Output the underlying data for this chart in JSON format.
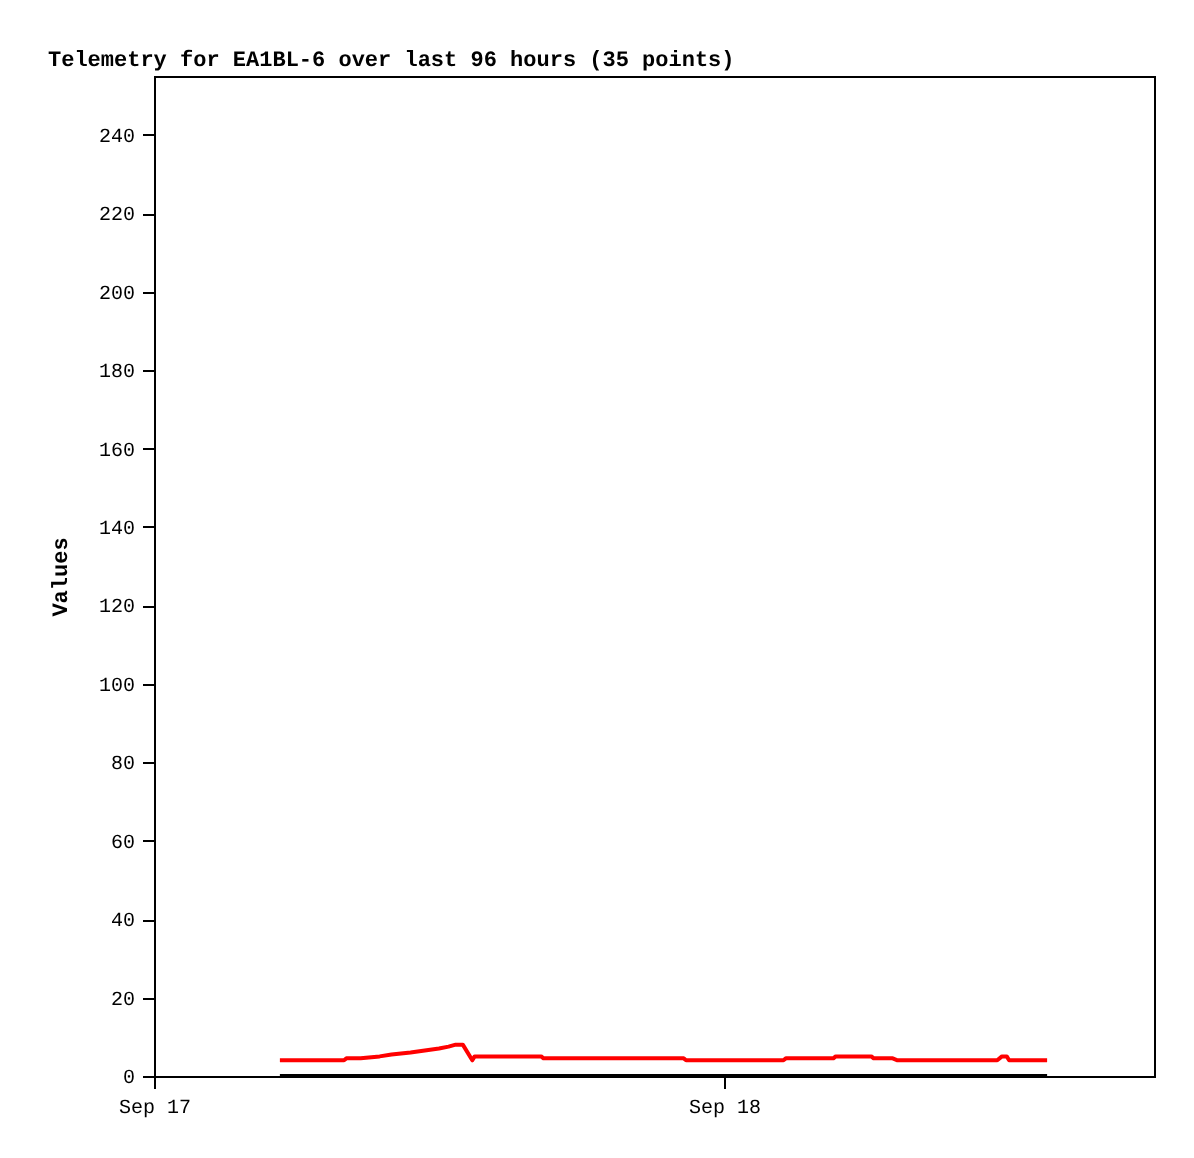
{
  "chart_data": {
    "type": "line",
    "title": "Telemetry for EA1BL-6 over last 96 hours (35 points)",
    "ylabel": "Values",
    "x": [
      "--09-17T05:18",
      "--09-17T08:00",
      "--09-17T08:06",
      "--09-17T08:42",
      "--09-17T09:30",
      "--09-17T10:00",
      "--09-17T10:48",
      "--09-17T11:24",
      "--09-17T12:00",
      "--09-17T12:24",
      "--09-17T12:42",
      "--09-17T13:00",
      "--09-17T13:24",
      "--09-17T13:30",
      "--09-17T16:18",
      "--09-17T16:24",
      "--09-17T22:18",
      "--09-17T22:24",
      "--09-18T02:30",
      "--09-18T02:36",
      "--09-18T04:36",
      "--09-18T04:42",
      "--09-18T06:12",
      "--09-18T06:18",
      "--09-18T07:06",
      "--09-18T07:18",
      "--09-18T11:30",
      "--09-18T11:42",
      "--09-18T11:54",
      "--09-18T12:00",
      "--09-18T13:36"
    ],
    "series": [
      {
        "color": "#ff0000",
        "values": [
          4,
          4,
          4.5,
          4.5,
          5,
          5.5,
          6,
          6.5,
          7,
          7.5,
          8,
          8,
          4,
          5,
          5,
          4.5,
          4.5,
          4,
          4,
          4.5,
          4.5,
          5,
          5,
          4.5,
          4.5,
          4,
          4,
          5,
          5,
          4,
          4
        ]
      },
      {
        "color": "#000000",
        "x": [
          "--09-17T05:18",
          "--09-18T13:36"
        ],
        "values": [
          0,
          0
        ]
      }
    ],
    "xlim": [
      "--09-17",
      "--09-18T18:06"
    ],
    "xticks": [
      {
        "value": "--09-17",
        "label": "Sep 17"
      },
      {
        "value": "--09-18",
        "label": "Sep 18"
      }
    ],
    "ylim": [
      0,
      255
    ],
    "yticks": [
      0,
      20,
      40,
      60,
      80,
      100,
      120,
      140,
      160,
      180,
      200,
      220,
      240
    ],
    "grid": false,
    "marker": "none",
    "line_style": "solid"
  }
}
